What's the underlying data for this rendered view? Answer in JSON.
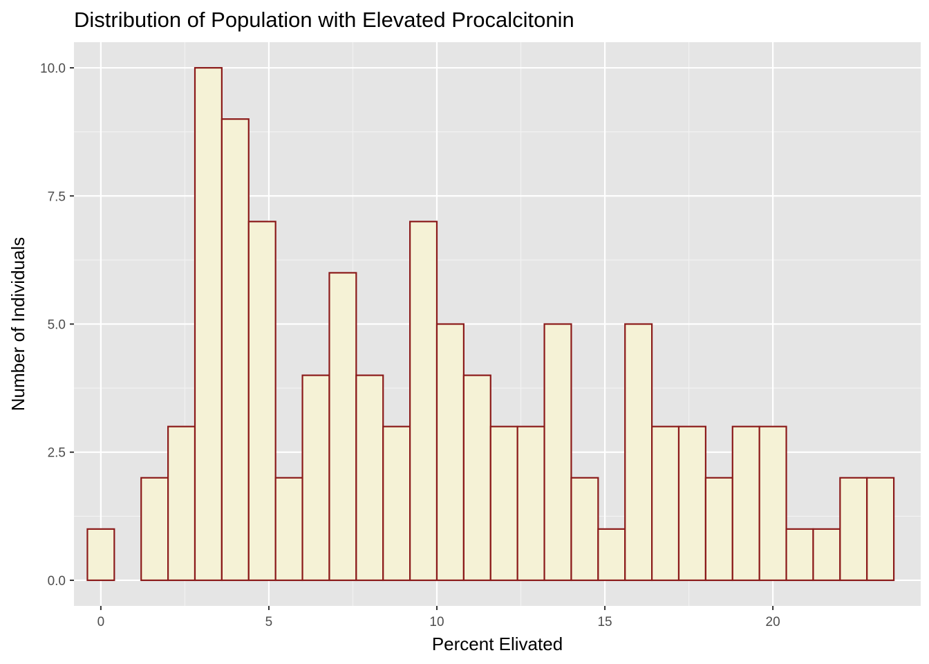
{
  "chart_data": {
    "type": "bar",
    "title": "Distribution of Population with Elevated Procalcitonin",
    "xlabel": "Percent Elivated",
    "ylabel": "Number of Individuals",
    "xlim": [
      -0.8,
      24.4
    ],
    "ylim": [
      -0.5,
      10.5
    ],
    "x_ticks": [
      0,
      5,
      10,
      15,
      20
    ],
    "x_tick_labels": [
      "0",
      "5",
      "10",
      "15",
      "20"
    ],
    "y_ticks": [
      0,
      2.5,
      5,
      7.5,
      10
    ],
    "y_tick_labels": [
      "0.0",
      "2.5",
      "5.0",
      "7.5",
      "10.0"
    ],
    "grid": true,
    "bin_width": 0.8,
    "bin_centers": [
      0,
      0.8,
      1.6,
      2.4,
      3.2,
      4.0,
      4.8,
      5.6,
      6.4,
      7.2,
      8.0,
      8.8,
      9.6,
      10.4,
      11.2,
      12.0,
      12.8,
      13.6,
      14.4,
      15.2,
      16.0,
      16.8,
      17.6,
      18.4,
      19.2,
      20.0,
      20.8,
      21.6,
      22.4,
      23.2
    ],
    "values": [
      1,
      0,
      2,
      3,
      10,
      9,
      7,
      2,
      4,
      6,
      4,
      3,
      7,
      5,
      4,
      3,
      3,
      5,
      2,
      1,
      5,
      3,
      3,
      2,
      3,
      3,
      1,
      1,
      2,
      2
    ],
    "colors": {
      "bar_fill": "#f5f2d6",
      "bar_outline": "#8b1a1a",
      "panel_background": "#e5e5e5",
      "grid_major": "#ffffff",
      "grid_minor": "#f2f2f2"
    }
  }
}
